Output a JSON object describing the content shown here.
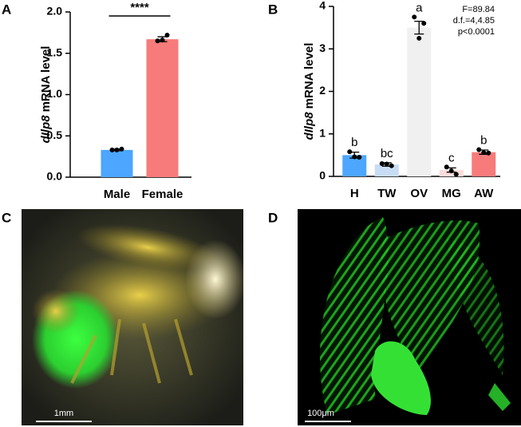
{
  "chart_data": [
    {
      "type": "bar",
      "panel": "A",
      "ylabel_italic": "dIlp8",
      "ylabel": "mRNA level",
      "categories": [
        "Male",
        "Female"
      ],
      "values": [
        0.33,
        1.67
      ],
      "errors": [
        0.01,
        0.03
      ],
      "points": [
        [
          0.33,
          0.34,
          0.33
        ],
        [
          1.65,
          1.72,
          1.66
        ]
      ],
      "colors": [
        "#4da6ff",
        "#f77b7b"
      ],
      "ylim": [
        0,
        2
      ],
      "yticks": [
        {
          "value": 0,
          "label": "0.0"
        },
        0.5,
        {
          "value": 1,
          "label": "1.0"
        },
        1.5,
        {
          "value": 2,
          "label": "2.0"
        }
      ],
      "significance": "****"
    },
    {
      "type": "bar",
      "panel": "B",
      "ylabel_italic": "dIlp8",
      "ylabel": "mRNA level",
      "categories": [
        "H",
        "TW",
        "OV",
        "MG",
        "AW"
      ],
      "values": [
        0.5,
        0.28,
        3.5,
        0.15,
        0.57
      ],
      "errors": [
        0.07,
        0.04,
        0.15,
        0.05,
        0.05
      ],
      "points": [
        [
          0.58,
          0.45,
          0.46
        ],
        [
          0.3,
          0.25,
          0.29
        ],
        [
          3.75,
          3.6,
          3.25
        ],
        [
          0.22,
          0.05,
          0.13
        ],
        [
          0.63,
          0.55,
          0.56
        ]
      ],
      "colors": [
        "#4da6ff",
        "#c8ddf5",
        "#f0f0f0",
        "#fadcdc",
        "#f77b7b"
      ],
      "ylim": [
        0,
        4
      ],
      "yticks": [
        0,
        1,
        2,
        3,
        4
      ],
      "letters": [
        "b",
        "bc",
        "a",
        "c",
        "b"
      ],
      "stats": [
        "F=89.84",
        "d.f.=4,4.85",
        "p<0.0001"
      ]
    }
  ],
  "images": [
    {
      "panel": "C",
      "scale_bar": "1mm"
    },
    {
      "panel": "D",
      "scale_bar": "100μm"
    }
  ]
}
